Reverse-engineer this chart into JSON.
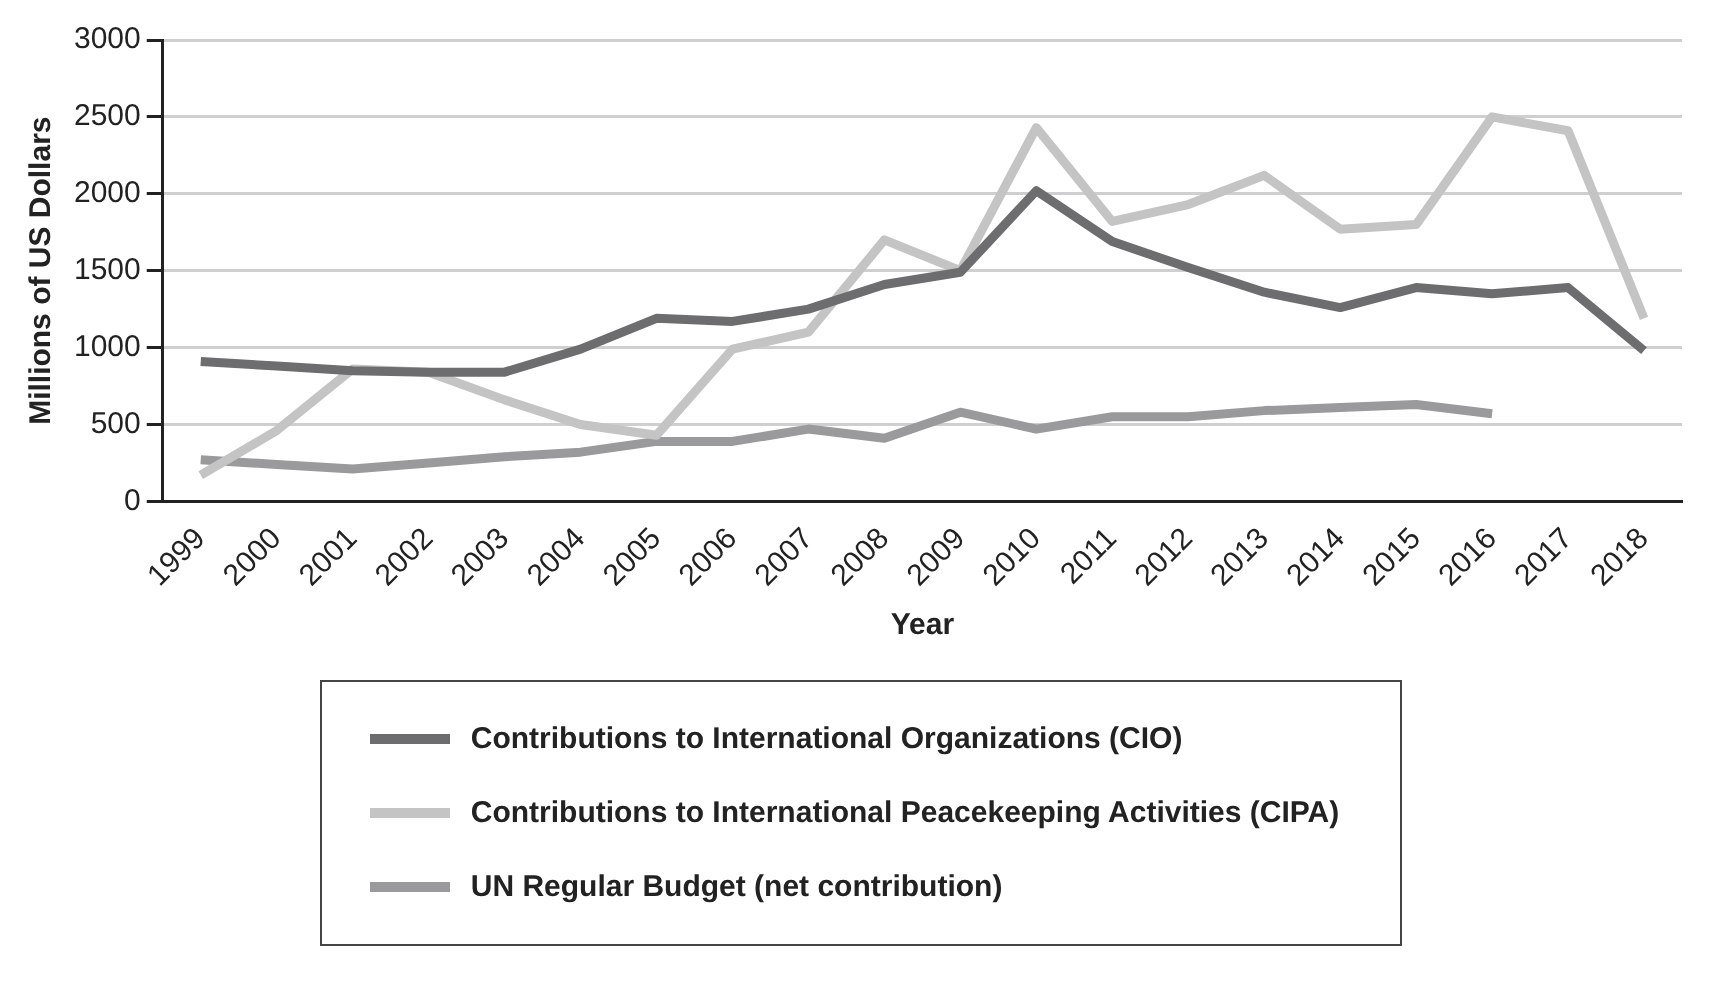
{
  "chart_data": {
    "type": "line",
    "xlabel": "Year",
    "ylabel": "Millions of US Dollars",
    "categories": [
      "1999",
      "2000",
      "2001",
      "2002",
      "2003",
      "2004",
      "2005",
      "2006",
      "2007",
      "2008",
      "2009",
      "2010",
      "2011",
      "2012",
      "2013",
      "2014",
      "2015",
      "2016",
      "2017",
      "2018"
    ],
    "series": [
      {
        "name": "Contributions to International Organizations (CIO)",
        "color": "#6d6d6f",
        "values": [
          910,
          880,
          850,
          840,
          840,
          990,
          1190,
          1170,
          1250,
          1410,
          1490,
          2020,
          1690,
          1520,
          1360,
          1260,
          1390,
          1350,
          1390,
          980
        ]
      },
      {
        "name": "Contributions to International Peacekeeping Activities (CIPA)",
        "color": "#c4c4c4",
        "values": [
          170,
          460,
          860,
          840,
          660,
          500,
          430,
          990,
          1100,
          1700,
          1500,
          2430,
          1820,
          1930,
          2120,
          1770,
          1800,
          2500,
          2410,
          1190
        ]
      },
      {
        "name": "UN Regular Budget (net contribution)",
        "color": "#9a9a9c",
        "values": [
          270,
          240,
          210,
          250,
          290,
          320,
          390,
          390,
          470,
          410,
          580,
          470,
          550,
          550,
          590,
          610,
          630,
          570,
          null,
          null
        ]
      }
    ],
    "ylim": [
      0,
      3000
    ],
    "yticks": [
      0,
      500,
      1000,
      1500,
      2000,
      2500,
      3000
    ],
    "grid": "y",
    "legend": "bottom",
    "marker": "none",
    "line_style": "solid"
  }
}
